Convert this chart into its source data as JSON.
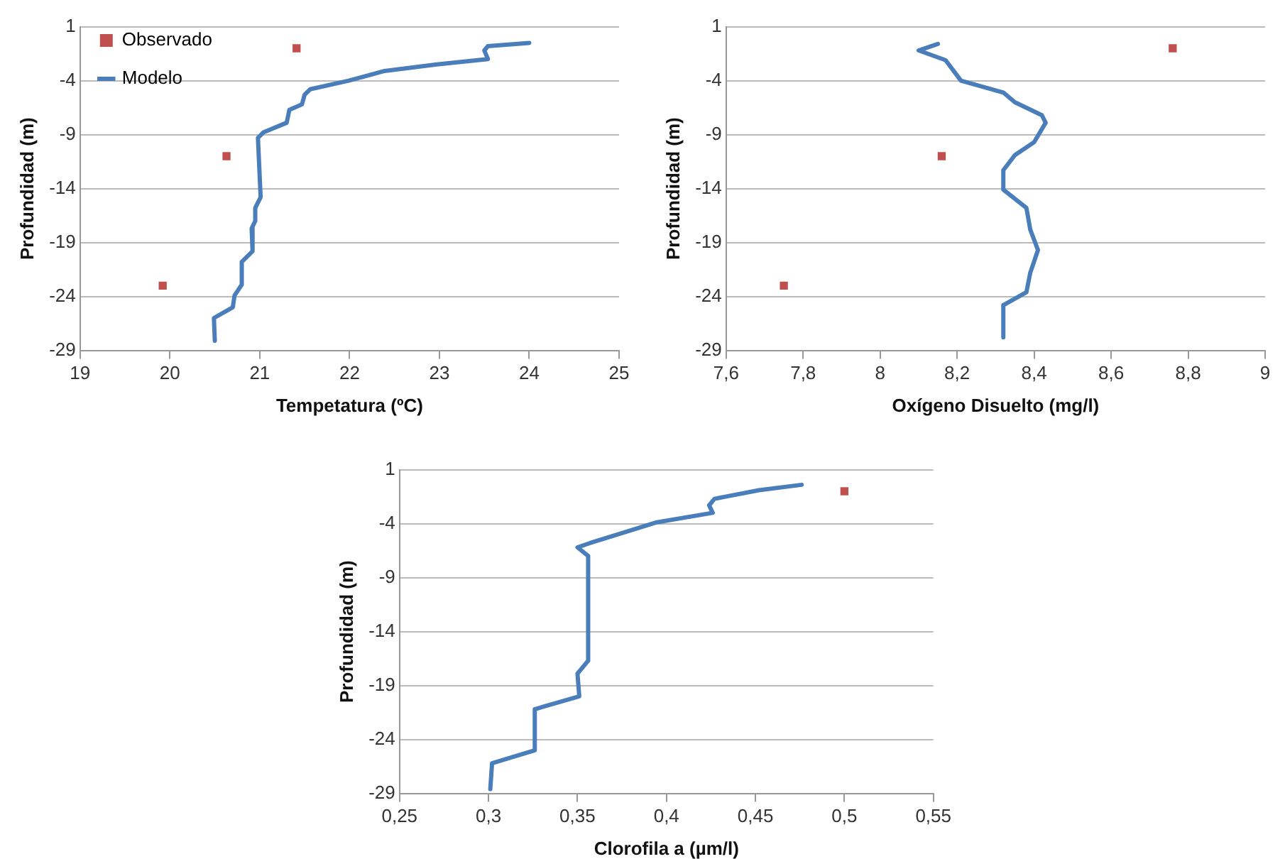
{
  "chart_data": [
    {
      "type": "scatter",
      "xlabel": "Tempetatura (ºC)",
      "ylabel": "Profundidad (m)",
      "xlim": [
        19,
        25
      ],
      "xticks": [
        19,
        20,
        21,
        22,
        23,
        24,
        25
      ],
      "ylim": [
        -29,
        1
      ],
      "yticks": [
        1,
        -4,
        -9,
        -14,
        -19,
        -24,
        -29
      ],
      "grid": "y",
      "legend": "top left",
      "series": [
        {
          "name": "Observado",
          "type": "scatter",
          "marker": "square",
          "color": "#c0504d",
          "x": [
            21.41,
            20.63,
            19.92
          ],
          "values": [
            -1,
            -11,
            -23
          ]
        },
        {
          "name": "Modelo",
          "type": "line",
          "marker": "none",
          "color": "#4a7ebb",
          "x": [
            24.0,
            23.54,
            23.5,
            23.54,
            22.97,
            22.39,
            21.99,
            21.56,
            21.5,
            21.47,
            21.33,
            21.3,
            21.04,
            20.98,
            21.01,
            20.95,
            20.95,
            20.91,
            20.92,
            20.8,
            20.8,
            20.72,
            20.7,
            20.49,
            20.5
          ],
          "values": [
            -0.5,
            -0.8,
            -1.2,
            -2.0,
            -2.5,
            -3.1,
            -4.0,
            -4.8,
            -5.3,
            -6.2,
            -6.7,
            -7.9,
            -8.8,
            -9.3,
            -14.8,
            -15.8,
            -17.0,
            -17.7,
            -19.8,
            -20.8,
            -22.9,
            -23.9,
            -25.0,
            -26.0,
            -28.1
          ]
        }
      ]
    },
    {
      "type": "scatter",
      "xlabel": "Oxígeno Disuelto (mg/l)",
      "ylabel": "Profundidad (m)",
      "xlim": [
        7.6,
        9
      ],
      "xticks": [
        {
          "value": 7.6,
          "label": "7,6"
        },
        {
          "value": 7.8,
          "label": "7,8"
        },
        8,
        {
          "value": 8.2,
          "label": "8,2"
        },
        {
          "value": 8.4,
          "label": "8,4"
        },
        {
          "value": 8.6,
          "label": "8,6"
        },
        {
          "value": 8.8,
          "label": "8,8"
        },
        9
      ],
      "ylim": [
        -29,
        1
      ],
      "yticks": [
        1,
        -4,
        -9,
        -14,
        -19,
        -24,
        -29
      ],
      "grid": "y",
      "legend": false,
      "series": [
        {
          "type": "scatter",
          "marker": "square",
          "color": "#c0504d",
          "x": [
            8.76,
            8.16,
            7.75
          ],
          "values": [
            -1,
            -11,
            -23
          ]
        },
        {
          "type": "line",
          "marker": "none",
          "color": "#4a7ebb",
          "x": [
            8.15,
            8.1,
            8.17,
            8.21,
            8.32,
            8.35,
            8.42,
            8.43,
            8.4,
            8.35,
            8.32,
            8.32,
            8.38,
            8.39,
            8.41,
            8.39,
            8.38,
            8.32,
            8.32
          ],
          "values": [
            -0.6,
            -1.2,
            -2.1,
            -4.0,
            -5.1,
            -6.0,
            -7.2,
            -7.9,
            -9.7,
            -10.9,
            -12.3,
            -14.1,
            -15.8,
            -17.8,
            -19.7,
            -21.8,
            -23.6,
            -24.8,
            -27.8
          ]
        }
      ]
    },
    {
      "type": "scatter",
      "xlabel": "Clorofila a (µm/l)",
      "ylabel": "Profundidad (m)",
      "xlim": [
        0.25,
        0.55
      ],
      "xticks": [
        {
          "value": 0.25,
          "label": "0,25"
        },
        {
          "value": 0.3,
          "label": "0,3"
        },
        {
          "value": 0.35,
          "label": "0,35"
        },
        {
          "value": 0.4,
          "label": "0,4"
        },
        {
          "value": 0.45,
          "label": "0,45"
        },
        {
          "value": 0.5,
          "label": "0,5"
        },
        {
          "value": 0.55,
          "label": "0,55"
        }
      ],
      "ylim": [
        -29,
        1
      ],
      "yticks": [
        1,
        -4,
        -9,
        -14,
        -19,
        -24,
        -29
      ],
      "grid": "y",
      "legend": false,
      "series": [
        {
          "type": "scatter",
          "marker": "square",
          "color": "#c0504d",
          "x": [
            0.5
          ],
          "values": [
            -1
          ]
        },
        {
          "type": "line",
          "marker": "none",
          "color": "#4a7ebb",
          "x": [
            0.476,
            0.452,
            0.427,
            0.424,
            0.426,
            0.394,
            0.357,
            0.35,
            0.356,
            0.356,
            0.35,
            0.351,
            0.326,
            0.326,
            0.302,
            0.301
          ],
          "values": [
            -0.4,
            -0.9,
            -1.7,
            -2.3,
            -3.0,
            -3.9,
            -5.8,
            -6.2,
            -7.0,
            -16.7,
            -17.9,
            -20.0,
            -21.2,
            -25.0,
            -26.2,
            -28.6
          ]
        }
      ]
    }
  ]
}
